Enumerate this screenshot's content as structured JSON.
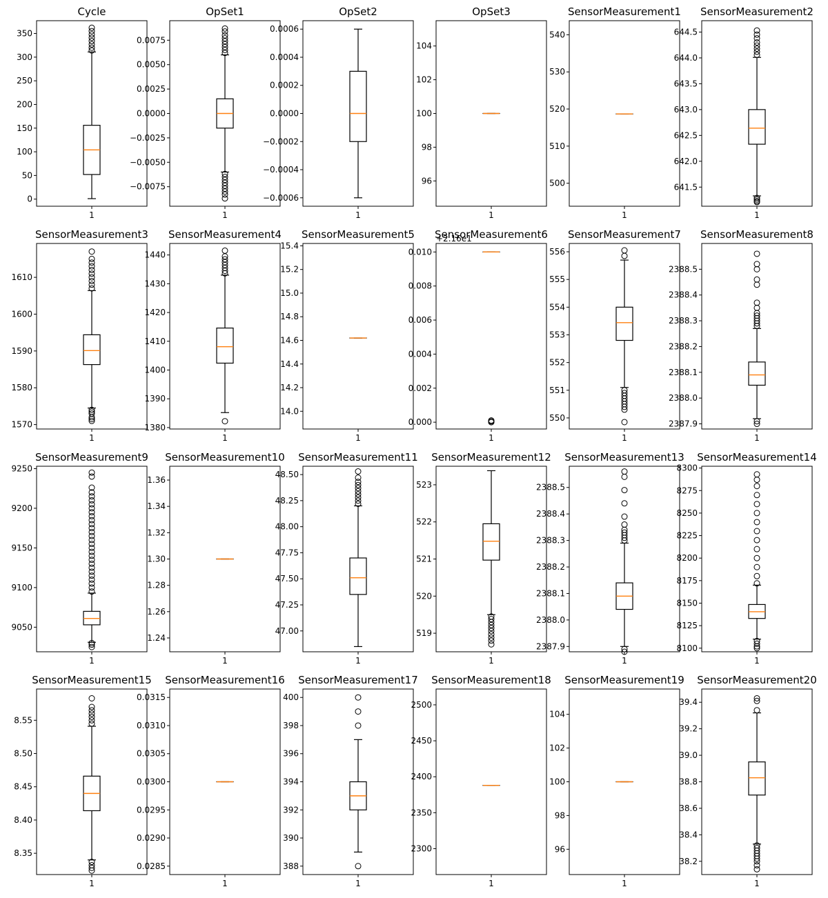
{
  "chart_data": [
    {
      "type": "box",
      "title": "Cycle",
      "categories": [
        "1"
      ],
      "ylim": [
        -15,
        377
      ],
      "yticks": [
        0,
        50,
        100,
        150,
        200,
        250,
        300,
        350
      ],
      "ytick_labels": [
        "0",
        "50",
        "100",
        "150",
        "200",
        "250",
        "300",
        "350"
      ],
      "box": {
        "whisker_low": 1,
        "q1": 52,
        "median": 104,
        "q3": 156,
        "whisker_high": 311
      },
      "outliers": [
        314,
        320,
        327,
        334,
        341,
        348,
        355,
        362
      ]
    },
    {
      "type": "box",
      "title": "OpSet1",
      "categories": [
        "1"
      ],
      "ylim": [
        -0.0095,
        0.0095
      ],
      "yticks": [
        -0.0075,
        -0.005,
        -0.0025,
        0,
        0.0025,
        0.005,
        0.0075
      ],
      "ytick_labels": [
        "−0.0075",
        "−0.0050",
        "−0.0025",
        "0.0000",
        "0.0025",
        "0.0050",
        "0.0075"
      ],
      "box": {
        "whisker_low": -0.006,
        "q1": -0.0015,
        "median": 0,
        "q3": 0.0015,
        "whisker_high": 0.006
      },
      "outliers": [
        0.0062,
        0.0065,
        0.0068,
        0.0071,
        0.0074,
        0.0077,
        0.008,
        0.0084,
        0.0087,
        -0.0062,
        -0.0065,
        -0.0068,
        -0.0071,
        -0.0074,
        -0.0077,
        -0.008,
        -0.0083,
        -0.0087
      ]
    },
    {
      "type": "box",
      "title": "OpSet2",
      "categories": [
        "1"
      ],
      "ylim": [
        -0.00066,
        0.00066
      ],
      "yticks": [
        -0.0006,
        -0.0004,
        -0.0002,
        0,
        0.0002,
        0.0004,
        0.0006
      ],
      "ytick_labels": [
        "−0.0006",
        "−0.0004",
        "−0.0002",
        "0.0000",
        "0.0002",
        "0.0004",
        "0.0006"
      ],
      "box": {
        "whisker_low": -0.0006,
        "q1": -0.0002,
        "median": 0,
        "q3": 0.0003,
        "whisker_high": 0.0006
      },
      "outliers": []
    },
    {
      "type": "box",
      "title": "OpSet3",
      "categories": [
        "1"
      ],
      "ylim": [
        94.5,
        105.5
      ],
      "yticks": [
        96,
        98,
        100,
        102,
        104
      ],
      "ytick_labels": [
        "96",
        "98",
        "100",
        "102",
        "104"
      ],
      "box": {
        "whisker_low": 100,
        "q1": 100,
        "median": 100,
        "q3": 100,
        "whisker_high": 100
      },
      "outliers": []
    },
    {
      "type": "box",
      "title": "SensorMeasurement1",
      "categories": [
        "1"
      ],
      "ylim": [
        493.8,
        543.8
      ],
      "yticks": [
        500,
        510,
        520,
        530,
        540
      ],
      "ytick_labels": [
        "500",
        "510",
        "520",
        "530",
        "540"
      ],
      "box": {
        "whisker_low": 518.67,
        "q1": 518.67,
        "median": 518.67,
        "q3": 518.67,
        "whisker_high": 518.67
      },
      "outliers": []
    },
    {
      "type": "box",
      "title": "SensorMeasurement2",
      "categories": [
        "1"
      ],
      "ylim": [
        641.13,
        644.72
      ],
      "yticks": [
        641.5,
        642,
        642.5,
        643,
        643.5,
        644,
        644.5
      ],
      "ytick_labels": [
        "641.5",
        "642.0",
        "642.5",
        "643.0",
        "643.5",
        "644.0",
        "644.5"
      ],
      "box": {
        "whisker_low": 641.33,
        "q1": 642.33,
        "median": 642.64,
        "q3": 643,
        "whisker_high": 644.01
      },
      "outliers": [
        644.06,
        644.12,
        644.18,
        644.24,
        644.3,
        644.38,
        644.45,
        644.53,
        641.29,
        641.26,
        641.23,
        641.21
      ]
    },
    {
      "type": "box",
      "title": "SensorMeasurement3",
      "categories": [
        "1"
      ],
      "ylim": [
        1568.8,
        1619.2
      ],
      "yticks": [
        1570,
        1580,
        1590,
        1600,
        1610
      ],
      "ytick_labels": [
        "1570",
        "1580",
        "1590",
        "1600",
        "1610"
      ],
      "box": {
        "whisker_low": 1574.5,
        "q1": 1586.3,
        "median": 1590.1,
        "q3": 1594.4,
        "whisker_high": 1606.4
      },
      "outliers": [
        1607,
        1608,
        1609,
        1610,
        1611,
        1612,
        1613,
        1614,
        1615,
        1617,
        1574,
        1573.5,
        1573,
        1572,
        1571.5,
        1571
      ]
    },
    {
      "type": "box",
      "title": "SensorMeasurement4",
      "categories": [
        "1"
      ],
      "ylim": [
        1379.5,
        1444
      ],
      "yticks": [
        1380,
        1390,
        1400,
        1410,
        1420,
        1430,
        1440
      ],
      "ytick_labels": [
        "1380",
        "1390",
        "1400",
        "1410",
        "1420",
        "1430",
        "1440"
      ],
      "box": {
        "whisker_low": 1385.2,
        "q1": 1402.4,
        "median": 1408.1,
        "q3": 1414.6,
        "whisker_high": 1433
      },
      "outliers": [
        1433.6,
        1434.5,
        1435.5,
        1436.5,
        1437.5,
        1438.5,
        1439.5,
        1441.5,
        1382.2
      ]
    },
    {
      "type": "box",
      "title": "SensorMeasurement5",
      "categories": [
        "1"
      ],
      "ylim": [
        13.85,
        15.42
      ],
      "yticks": [
        14,
        14.2,
        14.4,
        14.6,
        14.8,
        15,
        15.2,
        15.4
      ],
      "ytick_labels": [
        "14.0",
        "14.2",
        "14.4",
        "14.6",
        "14.8",
        "15.0",
        "15.2",
        "15.4"
      ],
      "box": {
        "whisker_low": 14.62,
        "q1": 14.62,
        "median": 14.62,
        "q3": 14.62,
        "whisker_high": 14.62
      },
      "outliers": []
    },
    {
      "type": "box",
      "title": "SensorMeasurement6",
      "offset_label": "+2.16e1",
      "categories": [
        "1"
      ],
      "ylim": [
        -0.0004,
        0.0105
      ],
      "yticks": [
        0,
        0.002,
        0.004,
        0.006,
        0.008,
        0.01
      ],
      "ytick_labels": [
        "0.000",
        "0.002",
        "0.004",
        "0.006",
        "0.008",
        "0.010"
      ],
      "box": {
        "whisker_low": 0.01,
        "q1": 0.01,
        "median": 0.01,
        "q3": 0.01,
        "whisker_high": 0.01
      },
      "outliers": [
        0,
        5e-05,
        0.0001
      ]
    },
    {
      "type": "box",
      "title": "SensorMeasurement7",
      "categories": [
        "1"
      ],
      "ylim": [
        549.6,
        556.3
      ],
      "yticks": [
        550,
        551,
        552,
        553,
        554,
        555,
        556
      ],
      "ytick_labels": [
        "550",
        "551",
        "552",
        "553",
        "554",
        "555",
        "556"
      ],
      "box": {
        "whisker_low": 551.1,
        "q1": 552.8,
        "median": 553.44,
        "q3": 554,
        "whisker_high": 555.7
      },
      "outliers": [
        551,
        550.9,
        550.8,
        550.7,
        550.6,
        550.5,
        550.4,
        550.3,
        549.85,
        555.85,
        556.05
      ]
    },
    {
      "type": "box",
      "title": "SensorMeasurement8",
      "categories": [
        "1"
      ],
      "ylim": [
        2387.88,
        2388.6
      ],
      "yticks": [
        2387.9,
        2388,
        2388.1,
        2388.2,
        2388.3,
        2388.4,
        2388.5
      ],
      "ytick_labels": [
        "2387.9",
        "2388.0",
        "2388.1",
        "2388.2",
        "2388.3",
        "2388.4",
        "2388.5"
      ],
      "box": {
        "whisker_low": 2387.92,
        "q1": 2388.05,
        "median": 2388.09,
        "q3": 2388.14,
        "whisker_high": 2388.27
      },
      "outliers": [
        2388.28,
        2388.29,
        2388.3,
        2388.31,
        2388.32,
        2388.33,
        2388.35,
        2388.37,
        2388.44,
        2388.46,
        2388.5,
        2388.52,
        2388.56,
        2387.91,
        2387.9
      ]
    },
    {
      "type": "box",
      "title": "SensorMeasurement9",
      "categories": [
        "1"
      ],
      "ylim": [
        9019,
        9253
      ],
      "yticks": [
        9050,
        9100,
        9150,
        9200,
        9250
      ],
      "ytick_labels": [
        "9050",
        "9100",
        "9150",
        "9200",
        "9250"
      ],
      "box": {
        "whisker_low": 9031,
        "q1": 9053,
        "median": 9061,
        "q3": 9070,
        "whisker_high": 9093
      },
      "outliers": [
        9095,
        9100,
        9105,
        9110,
        9115,
        9120,
        9125,
        9130,
        9135,
        9140,
        9145,
        9150,
        9155,
        9160,
        9165,
        9170,
        9175,
        9180,
        9185,
        9190,
        9195,
        9200,
        9205,
        9210,
        9215,
        9220,
        9226,
        9240,
        9245,
        9030,
        9028,
        9025
      ]
    },
    {
      "type": "box",
      "title": "SensorMeasurement10",
      "categories": [
        "1"
      ],
      "ylim": [
        1.2295,
        1.3705
      ],
      "yticks": [
        1.24,
        1.26,
        1.28,
        1.3,
        1.32,
        1.34,
        1.36
      ],
      "ytick_labels": [
        "1.24",
        "1.26",
        "1.28",
        "1.30",
        "1.32",
        "1.34",
        "1.36"
      ],
      "box": {
        "whisker_low": 1.3,
        "q1": 1.3,
        "median": 1.3,
        "q3": 1.3,
        "whisker_high": 1.3
      },
      "outliers": []
    },
    {
      "type": "box",
      "title": "SensorMeasurement11",
      "categories": [
        "1"
      ],
      "ylim": [
        46.8,
        48.58
      ],
      "yticks": [
        47,
        47.25,
        47.5,
        47.75,
        48,
        48.25,
        48.5
      ],
      "ytick_labels": [
        "47.00",
        "47.25",
        "47.50",
        "47.75",
        "48.00",
        "48.25",
        "48.50"
      ],
      "box": {
        "whisker_low": 46.85,
        "q1": 47.35,
        "median": 47.51,
        "q3": 47.7,
        "whisker_high": 48.2
      },
      "outliers": [
        48.22,
        48.25,
        48.28,
        48.31,
        48.34,
        48.37,
        48.4,
        48.43,
        48.47,
        48.53
      ]
    },
    {
      "type": "box",
      "title": "SensorMeasurement12",
      "categories": [
        "1"
      ],
      "ylim": [
        518.5,
        523.5
      ],
      "yticks": [
        519,
        520,
        521,
        522,
        523
      ],
      "ytick_labels": [
        "519",
        "520",
        "521",
        "522",
        "523"
      ],
      "box": {
        "whisker_low": 519.5,
        "q1": 520.97,
        "median": 521.48,
        "q3": 521.95,
        "whisker_high": 523.38
      },
      "outliers": [
        519.45,
        519.38,
        519.3,
        519.22,
        519.14,
        519.06,
        518.97,
        518.88,
        518.8,
        518.7
      ]
    },
    {
      "type": "box",
      "title": "SensorMeasurement13",
      "categories": [
        "1"
      ],
      "ylim": [
        2387.88,
        2388.58
      ],
      "yticks": [
        2387.9,
        2388,
        2388.1,
        2388.2,
        2388.3,
        2388.4,
        2388.5
      ],
      "ytick_labels": [
        "2387.9",
        "2388.0",
        "2388.1",
        "2388.2",
        "2388.3",
        "2388.4",
        "2388.5"
      ],
      "box": {
        "whisker_low": 2387.9,
        "q1": 2388.04,
        "median": 2388.09,
        "q3": 2388.14,
        "whisker_high": 2388.29
      },
      "outliers": [
        2388.3,
        2388.31,
        2388.32,
        2388.33,
        2388.34,
        2388.36,
        2388.39,
        2388.44,
        2388.49,
        2388.54,
        2388.56,
        2387.89,
        2387.88
      ]
    },
    {
      "type": "box",
      "title": "SensorMeasurement14",
      "categories": [
        "1"
      ],
      "ylim": [
        8096,
        8302
      ],
      "yticks": [
        8100,
        8125,
        8150,
        8175,
        8200,
        8225,
        8250,
        8275,
        8300
      ],
      "ytick_labels": [
        "8100",
        "8125",
        "8150",
        "8175",
        "8200",
        "8225",
        "8250",
        "8275",
        "8300"
      ],
      "box": {
        "whisker_low": 8110,
        "q1": 8133,
        "median": 8140.5,
        "q3": 8148.5,
        "whisker_high": 8170
      },
      "outliers": [
        8172,
        8180,
        8190,
        8200,
        8210,
        8220,
        8230,
        8240,
        8250,
        8260,
        8270,
        8280,
        8287,
        8293,
        8108,
        8105,
        8102,
        8100
      ]
    },
    {
      "type": "box",
      "title": "SensorMeasurement15",
      "categories": [
        "1"
      ],
      "ylim": [
        8.318,
        8.597
      ],
      "yticks": [
        8.35,
        8.4,
        8.45,
        8.5,
        8.55
      ],
      "ytick_labels": [
        "8.35",
        "8.40",
        "8.45",
        "8.50",
        "8.55"
      ],
      "box": {
        "whisker_low": 8.34,
        "q1": 8.414,
        "median": 8.44,
        "q3": 8.466,
        "whisker_high": 8.541
      },
      "outliers": [
        8.545,
        8.55,
        8.555,
        8.56,
        8.565,
        8.57,
        8.583,
        8.337,
        8.332,
        8.328,
        8.324
      ]
    },
    {
      "type": "box",
      "title": "SensorMeasurement16",
      "categories": [
        "1"
      ],
      "ylim": [
        0.02835,
        0.03165
      ],
      "yticks": [
        0.0285,
        0.029,
        0.0295,
        0.03,
        0.0305,
        0.031,
        0.0315
      ],
      "ytick_labels": [
        "0.0285",
        "0.0290",
        "0.0295",
        "0.0300",
        "0.0305",
        "0.0310",
        "0.0315"
      ],
      "box": {
        "whisker_low": 0.03,
        "q1": 0.03,
        "median": 0.03,
        "q3": 0.03,
        "whisker_high": 0.03
      },
      "outliers": []
    },
    {
      "type": "box",
      "title": "SensorMeasurement17",
      "categories": [
        "1"
      ],
      "ylim": [
        387.4,
        400.6
      ],
      "yticks": [
        388,
        390,
        392,
        394,
        396,
        398,
        400
      ],
      "ytick_labels": [
        "388",
        "390",
        "392",
        "394",
        "396",
        "398",
        "400"
      ],
      "box": {
        "whisker_low": 389,
        "q1": 392,
        "median": 393,
        "q3": 394,
        "whisker_high": 397
      },
      "outliers": [
        398,
        399,
        400,
        388
      ]
    },
    {
      "type": "box",
      "title": "SensorMeasurement18",
      "categories": [
        "1"
      ],
      "ylim": [
        2264,
        2522
      ],
      "yticks": [
        2300,
        2350,
        2400,
        2450,
        2500
      ],
      "ytick_labels": [
        "2300",
        "2350",
        "2400",
        "2450",
        "2500"
      ],
      "box": {
        "whisker_low": 2388,
        "q1": 2388,
        "median": 2388,
        "q3": 2388,
        "whisker_high": 2388
      },
      "outliers": []
    },
    {
      "type": "box",
      "title": "SensorMeasurement19",
      "categories": [
        "1"
      ],
      "ylim": [
        94.5,
        105.5
      ],
      "yticks": [
        96,
        98,
        100,
        102,
        104
      ],
      "ytick_labels": [
        "96",
        "98",
        "100",
        "102",
        "104"
      ],
      "box": {
        "whisker_low": 100,
        "q1": 100,
        "median": 100,
        "q3": 100,
        "whisker_high": 100
      },
      "outliers": []
    },
    {
      "type": "box",
      "title": "SensorMeasurement20",
      "categories": [
        "1"
      ],
      "ylim": [
        38.1,
        39.5
      ],
      "yticks": [
        38.2,
        38.4,
        38.6,
        38.8,
        39,
        39.2,
        39.4
      ],
      "ytick_labels": [
        "38.2",
        "38.4",
        "38.6",
        "38.8",
        "39.0",
        "39.2",
        "39.4"
      ],
      "box": {
        "whisker_low": 38.33,
        "q1": 38.7,
        "median": 38.83,
        "q3": 38.95,
        "whisker_high": 39.32
      },
      "outliers": [
        38.32,
        38.3,
        38.28,
        38.26,
        38.24,
        38.22,
        38.2,
        38.17,
        38.14,
        39.34,
        39.41,
        39.43
      ]
    }
  ],
  "colors": {
    "median": "#ff7f0e",
    "box": "#000000"
  }
}
